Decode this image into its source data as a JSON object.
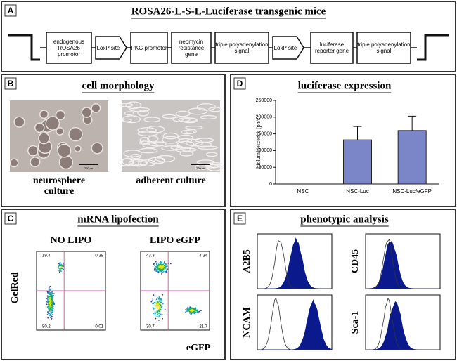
{
  "panel_a": {
    "label": "A",
    "title": "ROSA26-L-S-L-Luciferase transgenic mice",
    "elements": [
      {
        "text": "endogenous ROSA26 promotor",
        "shape": "box"
      },
      {
        "text": "LoxP site",
        "shape": "arrow"
      },
      {
        "text": "PKG promotor",
        "shape": "box"
      },
      {
        "text": "neomycin resistance gene",
        "shape": "box"
      },
      {
        "text": "triple polyadenylation signal",
        "shape": "box"
      },
      {
        "text": "LoxP site",
        "shape": "arrow"
      },
      {
        "text": "luciferase reporter gene",
        "shape": "box"
      },
      {
        "text": "triple polyadenylation signal",
        "shape": "box"
      }
    ]
  },
  "panel_b": {
    "label": "B",
    "title": "cell morphology",
    "images": [
      {
        "caption": "neurosphere culture",
        "scale": "200µm"
      },
      {
        "caption": "adherent culture",
        "scale": "200µm"
      }
    ]
  },
  "panel_c": {
    "label": "C",
    "title": "mRNA lipofection",
    "y_label": "GelRed",
    "x_label": "eGFP",
    "plots": [
      {
        "title": "NO LIPO",
        "quadrants": [
          19.4,
          0.38,
          80.2,
          0.01
        ]
      },
      {
        "title": "LIPO eGFP",
        "quadrants": [
          43.3,
          4.34,
          30.7,
          21.7
        ]
      }
    ]
  },
  "panel_d": {
    "label": "D",
    "chart": {
      "type": "bar",
      "title": "luciferase expression",
      "y_label": "bioluminescence (ph/s)",
      "categories": [
        "NSC",
        "NSC-Luc",
        "NSC-Luc/eGFP"
      ],
      "values": [
        0,
        132000,
        160000
      ],
      "errors": [
        0,
        40000,
        43000
      ],
      "color": "#7b86c8",
      "ylim": [
        0,
        250000
      ],
      "yticks": [
        0,
        50000,
        100000,
        150000,
        200000,
        250000
      ]
    }
  },
  "panel_e": {
    "label": "E",
    "title": "phenotypic analysis",
    "markers": [
      "A2B5",
      "CD45",
      "NCAM",
      "Sca-1"
    ]
  }
}
